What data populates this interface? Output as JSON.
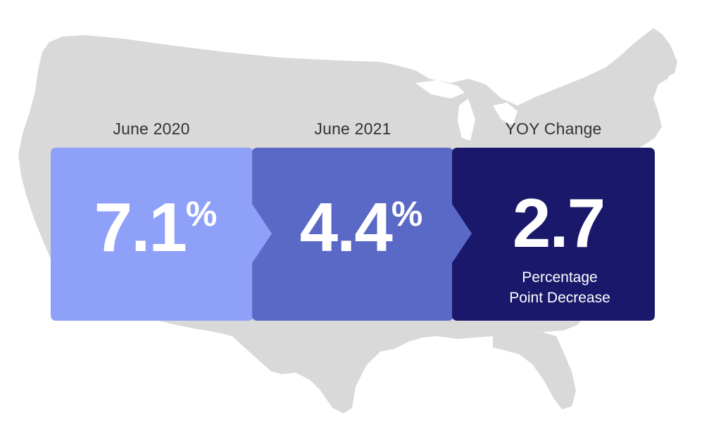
{
  "colors": {
    "map": "#d9d9d9",
    "panel_1": "#8fa0f8",
    "panel_2": "#5b69c6",
    "panel_3": "#1a186b",
    "label_text": "#333333",
    "value_text": "#ffffff"
  },
  "stats": [
    {
      "label": "June 2020",
      "value": "7.1",
      "unit": "%"
    },
    {
      "label": "June 2021",
      "value": "4.4",
      "unit": "%"
    },
    {
      "label": "YOY Change",
      "value": "2.7",
      "caption_line1": "Percentage",
      "caption_line2": "Point Decrease"
    }
  ]
}
